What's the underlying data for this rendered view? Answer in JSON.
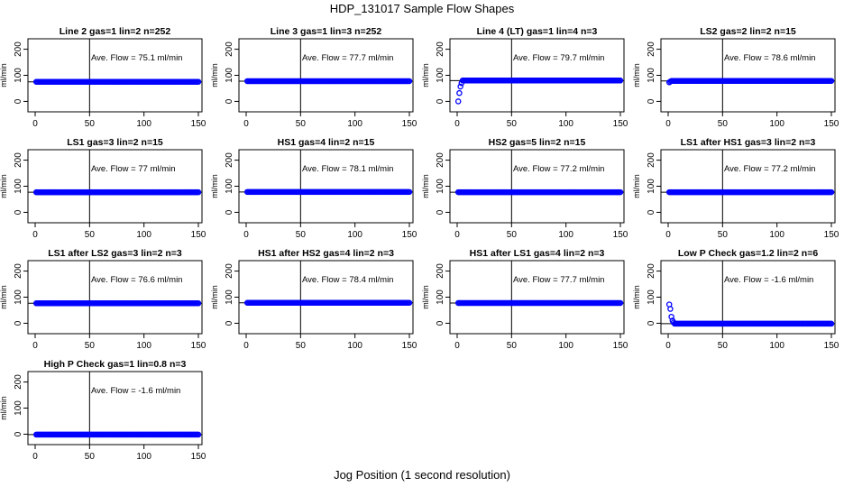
{
  "figure": {
    "title": "HDP_131017  Sample Flow Shapes",
    "xlabel": "Jog Position (1 second resolution)"
  },
  "chart_data": [
    {
      "type": "scatter",
      "title": "Line 2 gas=1 lin=2 n=252",
      "ylabel": "ml/min",
      "annotation": "Ave. Flow =  75.1  ml/min",
      "xlim": [
        0,
        150
      ],
      "ylim": [
        0,
        200
      ],
      "xticks": [
        0,
        50,
        100,
        150
      ],
      "yticks": [
        0,
        100,
        200
      ],
      "vline": 50,
      "hline": 75.1,
      "points_constant": {
        "x_start": 1,
        "x_end": 150,
        "y": 75.1
      },
      "points_extra": []
    },
    {
      "type": "scatter",
      "title": "Line 3 gas=1 lin=3 n=252",
      "ylabel": "ml/min",
      "annotation": "Ave. Flow =  77.7  ml/min",
      "xlim": [
        0,
        150
      ],
      "ylim": [
        0,
        200
      ],
      "xticks": [
        0,
        50,
        100,
        150
      ],
      "yticks": [
        0,
        100,
        200
      ],
      "vline": 50,
      "hline": 77.7,
      "points_constant": {
        "x_start": 1,
        "x_end": 150,
        "y": 77.7
      },
      "points_extra": []
    },
    {
      "type": "scatter",
      "title": "Line 4 (LT) gas=1 lin=4 n=3",
      "ylabel": "ml/min",
      "annotation": "Ave. Flow =  79.7  ml/min",
      "xlim": [
        0,
        150
      ],
      "ylim": [
        0,
        200
      ],
      "xticks": [
        0,
        50,
        100,
        150
      ],
      "yticks": [
        0,
        100,
        200
      ],
      "vline": 50,
      "hline": 79.7,
      "points_constant": {
        "x_start": 5,
        "x_end": 150,
        "y": 80
      },
      "points_extra": [
        [
          1,
          0
        ],
        [
          2,
          32
        ],
        [
          3,
          57
        ],
        [
          4,
          70
        ]
      ]
    },
    {
      "type": "scatter",
      "title": "LS2 gas=2 lin=2 n=15",
      "ylabel": "ml/min",
      "annotation": "Ave. Flow =  78.6  ml/min",
      "xlim": [
        0,
        150
      ],
      "ylim": [
        0,
        200
      ],
      "xticks": [
        0,
        50,
        100,
        150
      ],
      "yticks": [
        0,
        100,
        200
      ],
      "vline": 50,
      "hline": 78.6,
      "points_constant": {
        "x_start": 3,
        "x_end": 150,
        "y": 78.6
      },
      "points_extra": [
        [
          1,
          73
        ],
        [
          2,
          76
        ]
      ]
    },
    {
      "type": "scatter",
      "title": "LS1 gas=3 lin=2 n=15",
      "ylabel": "ml/min",
      "annotation": "Ave. Flow =  77  ml/min",
      "xlim": [
        0,
        150
      ],
      "ylim": [
        0,
        200
      ],
      "xticks": [
        0,
        50,
        100,
        150
      ],
      "yticks": [
        0,
        100,
        200
      ],
      "vline": 50,
      "hline": 77,
      "points_constant": {
        "x_start": 1,
        "x_end": 150,
        "y": 77
      },
      "points_extra": []
    },
    {
      "type": "scatter",
      "title": "HS1 gas=4 lin=2 n=15",
      "ylabel": "ml/min",
      "annotation": "Ave. Flow =  78.1  ml/min",
      "xlim": [
        0,
        150
      ],
      "ylim": [
        0,
        200
      ],
      "xticks": [
        0,
        50,
        100,
        150
      ],
      "yticks": [
        0,
        100,
        200
      ],
      "vline": 50,
      "hline": 78.1,
      "points_constant": {
        "x_start": 1,
        "x_end": 150,
        "y": 78.1
      },
      "points_extra": []
    },
    {
      "type": "scatter",
      "title": "HS2 gas=5 lin=2 n=15",
      "ylabel": "ml/min",
      "annotation": "Ave. Flow =  77.2  ml/min",
      "xlim": [
        0,
        150
      ],
      "ylim": [
        0,
        200
      ],
      "xticks": [
        0,
        50,
        100,
        150
      ],
      "yticks": [
        0,
        100,
        200
      ],
      "vline": 50,
      "hline": 77.2,
      "points_constant": {
        "x_start": 1,
        "x_end": 150,
        "y": 77.2
      },
      "points_extra": []
    },
    {
      "type": "scatter",
      "title": "LS1 after HS1 gas=3 lin=2 n=3",
      "ylabel": "ml/min",
      "annotation": "Ave. Flow =  77.2  ml/min",
      "xlim": [
        0,
        150
      ],
      "ylim": [
        0,
        200
      ],
      "xticks": [
        0,
        50,
        100,
        150
      ],
      "yticks": [
        0,
        100,
        200
      ],
      "vline": 50,
      "hline": 77.2,
      "points_constant": {
        "x_start": 1,
        "x_end": 150,
        "y": 77.2
      },
      "points_extra": []
    },
    {
      "type": "scatter",
      "title": "LS1 after LS2 gas=3 lin=2 n=3",
      "ylabel": "ml/min",
      "annotation": "Ave. Flow =  76.6  ml/min",
      "xlim": [
        0,
        150
      ],
      "ylim": [
        0,
        200
      ],
      "xticks": [
        0,
        50,
        100,
        150
      ],
      "yticks": [
        0,
        100,
        200
      ],
      "vline": 50,
      "hline": 76.6,
      "points_constant": {
        "x_start": 1,
        "x_end": 150,
        "y": 76.6
      },
      "points_extra": []
    },
    {
      "type": "scatter",
      "title": "HS1 after HS2 gas=4 lin=2 n=3",
      "ylabel": "ml/min",
      "annotation": "Ave. Flow =  78.4  ml/min",
      "xlim": [
        0,
        150
      ],
      "ylim": [
        0,
        200
      ],
      "xticks": [
        0,
        50,
        100,
        150
      ],
      "yticks": [
        0,
        100,
        200
      ],
      "vline": 50,
      "hline": 78.4,
      "points_constant": {
        "x_start": 1,
        "x_end": 150,
        "y": 78.4
      },
      "points_extra": []
    },
    {
      "type": "scatter",
      "title": "HS1 after LS1 gas=4 lin=2 n=3",
      "ylabel": "ml/min",
      "annotation": "Ave. Flow =  77.7  ml/min",
      "xlim": [
        0,
        150
      ],
      "ylim": [
        0,
        200
      ],
      "xticks": [
        0,
        50,
        100,
        150
      ],
      "yticks": [
        0,
        100,
        200
      ],
      "vline": 50,
      "hline": 77.7,
      "points_constant": {
        "x_start": 1,
        "x_end": 150,
        "y": 77.7
      },
      "points_extra": []
    },
    {
      "type": "scatter",
      "title": "Low P Check gas=1.2 lin=2 n=6",
      "ylabel": "ml/min",
      "annotation": "Ave. Flow =  -1.6  ml/min",
      "xlim": [
        0,
        150
      ],
      "ylim": [
        0,
        200
      ],
      "xticks": [
        0,
        50,
        100,
        150
      ],
      "yticks": [
        0,
        100,
        200
      ],
      "vline": 50,
      "hline": -1.6,
      "points_constant": {
        "x_start": 6,
        "x_end": 150,
        "y": -1.6
      },
      "points_extra": [
        [
          1,
          72
        ],
        [
          2,
          55
        ],
        [
          3,
          25
        ],
        [
          4,
          10
        ],
        [
          5,
          3
        ]
      ]
    },
    {
      "type": "scatter",
      "title": "High P Check gas=1 lin=0.8 n=3",
      "ylabel": "ml/min",
      "annotation": "Ave. Flow =  -1.6  ml/min",
      "xlim": [
        0,
        150
      ],
      "ylim": [
        0,
        200
      ],
      "xticks": [
        0,
        50,
        100,
        150
      ],
      "yticks": [
        0,
        100,
        200
      ],
      "vline": 50,
      "hline": -1.6,
      "points_constant": {
        "x_start": 1,
        "x_end": 150,
        "y": -1.6
      },
      "points_extra": []
    }
  ],
  "colors": {
    "points": "#0000ff",
    "lines": "#000000",
    "background": "#ffffff"
  }
}
